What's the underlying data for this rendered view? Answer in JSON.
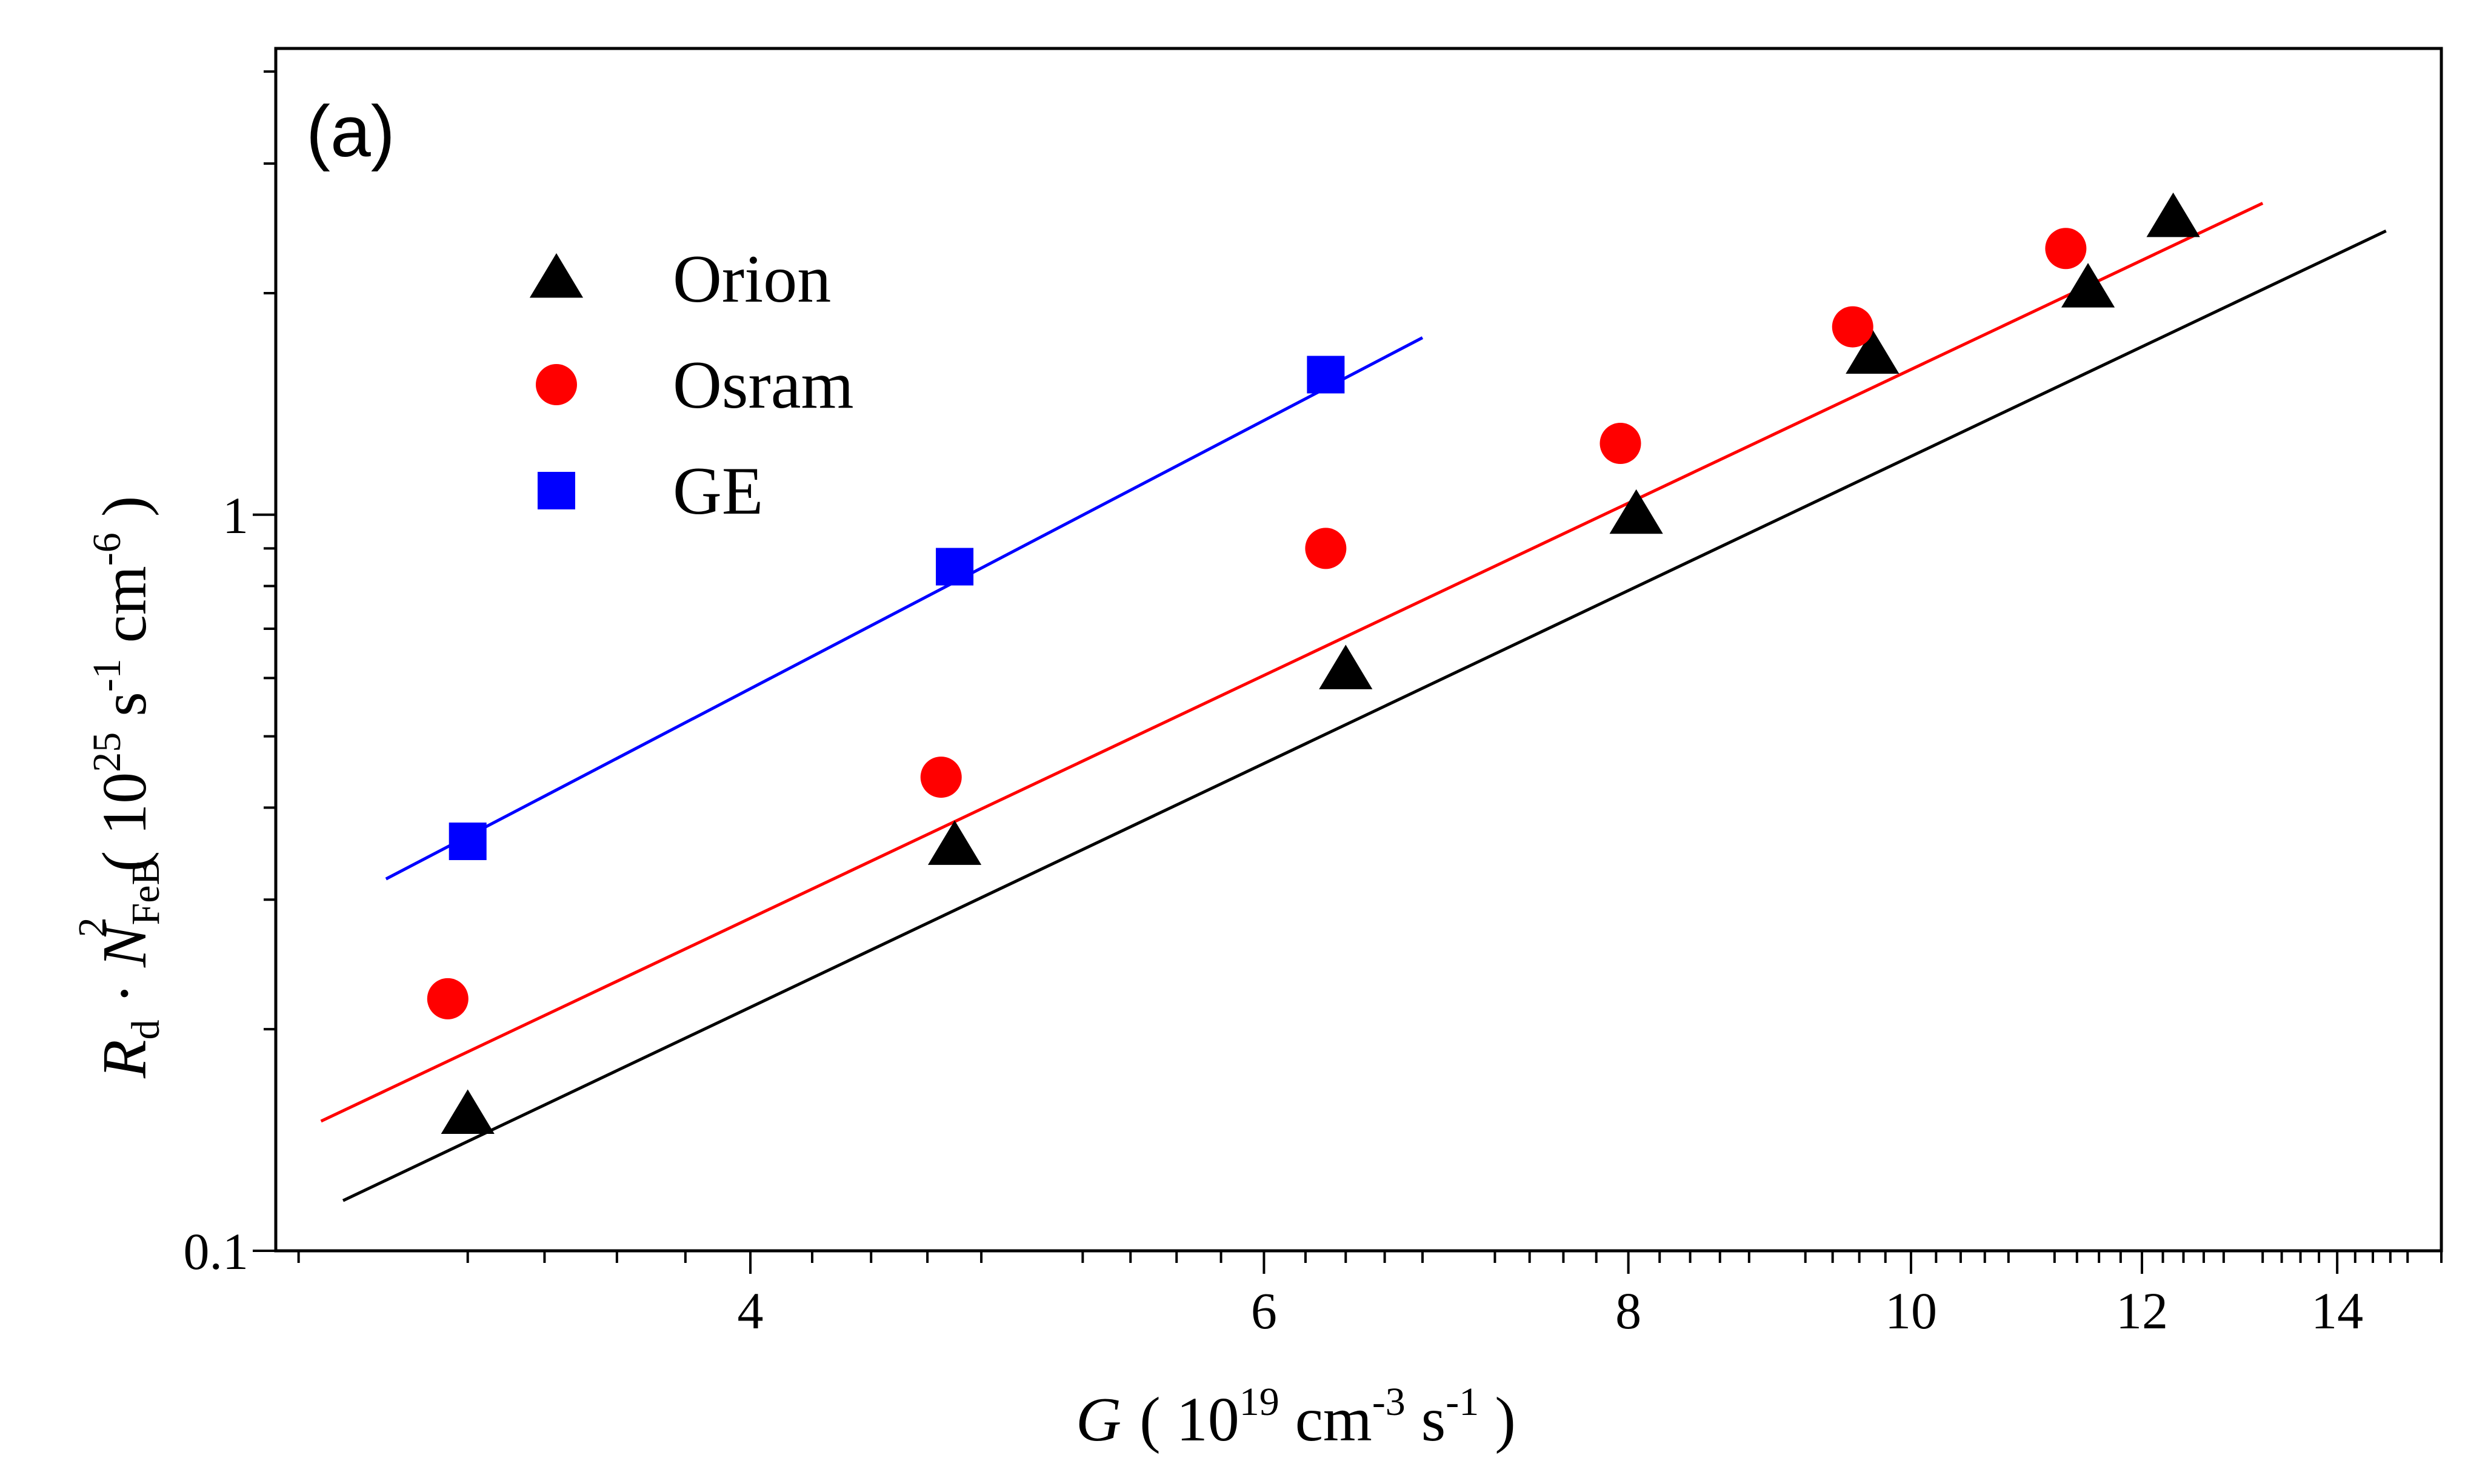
{
  "chart_data": {
    "type": "scatter",
    "panel_label": "(a)",
    "x_scale": "log",
    "y_scale": "log",
    "xlim": [
      2.75,
      15.2
    ],
    "ylim": [
      0.1,
      4.3
    ],
    "x_ticks": [
      4,
      6,
      8,
      10,
      12,
      14
    ],
    "x_tick_labels": [
      "4",
      "6",
      "8",
      "10",
      "12",
      "14"
    ],
    "y_ticks": [
      0.1,
      1
    ],
    "y_tick_labels": [
      "0.1",
      "1"
    ],
    "xlabel": {
      "symbol": "G",
      "open": "( 10",
      "exp1": "19",
      "unit1": " cm",
      "exp2": "-3",
      "unit2": " s",
      "exp3": "-1",
      "close": " )"
    },
    "ylabel": {
      "symbol1": "R",
      "sub1": "d",
      "dot": " · ",
      "symbol2": "N",
      "sub2": "FeB",
      "sup2": "2",
      "open": "( 10",
      "exp1": "25",
      "unit1": " s",
      "exp2": "-1",
      "unit2": " cm",
      "exp3": "-6",
      "close": " )"
    },
    "legend_position": "top-left",
    "series": [
      {
        "name": "Orion",
        "marker": "triangle",
        "color": "#000000",
        "x": [
          3.2,
          4.7,
          6.4,
          8.05,
          9.7,
          11.5,
          12.3
        ],
        "y": [
          0.153,
          0.355,
          0.615,
          1.0,
          1.65,
          2.03,
          2.53
        ],
        "fit": {
          "x": [
            2.9,
            14.55
          ],
          "y": [
            0.117,
            2.43
          ]
        }
      },
      {
        "name": "Osram",
        "marker": "circle",
        "color": "#ff0000",
        "x": [
          3.15,
          4.65,
          6.3,
          7.95,
          9.55,
          11.3
        ],
        "y": [
          0.22,
          0.44,
          0.9,
          1.25,
          1.8,
          2.3
        ],
        "fit": {
          "x": [
            2.85,
            13.2
          ],
          "y": [
            0.15,
            2.65
          ]
        }
      },
      {
        "name": "GE",
        "marker": "square",
        "color": "#0000ff",
        "x": [
          3.2,
          4.7,
          6.3
        ],
        "y": [
          0.36,
          0.85,
          1.55
        ],
        "fit": {
          "x": [
            3.0,
            6.8
          ],
          "y": [
            0.32,
            1.74
          ]
        }
      }
    ]
  }
}
